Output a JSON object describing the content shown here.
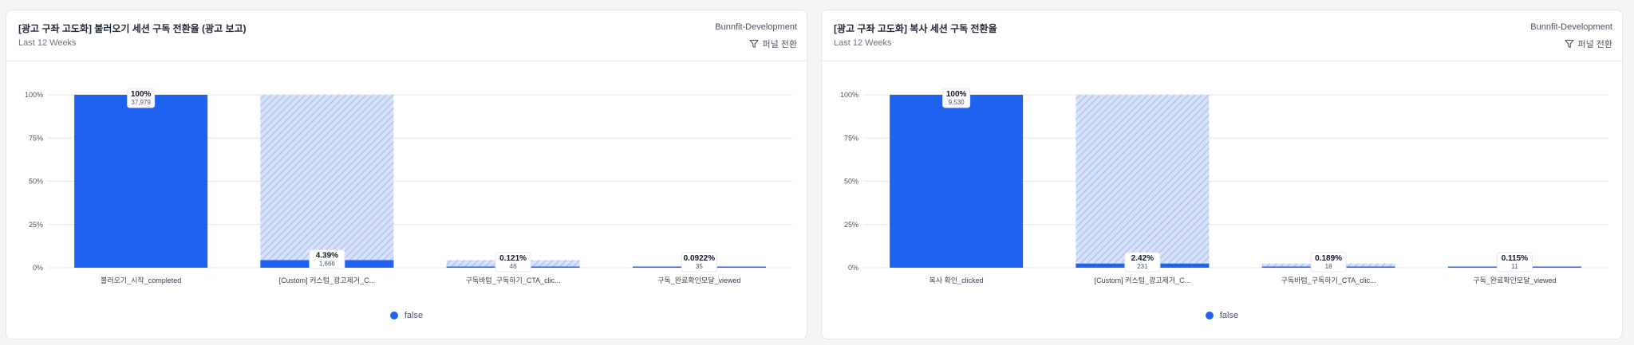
{
  "colors": {
    "bar": "#1e62f0",
    "hatch": "#a9c0f2",
    "hatch_bg": "#d8e3fb",
    "grid": "#e5e7eb"
  },
  "cards": [
    {
      "title": "[광고 구좌 고도화] 불러오기 세션 구독 전환율 (광고 보고)",
      "subtitle": "Last 12 Weeks",
      "project": "Bunnfit-Development",
      "action_label": "퍼널 전환",
      "action_icon": "funnel-icon",
      "legend_label": "false",
      "chart_data": {
        "type": "bar",
        "categories": [
          "불러오기_시작_completed",
          "[Custom] 커스텀_광고제거_C...",
          "구독바텀_구독하기_CTA_clic...",
          "구독_완료확인모달_viewed"
        ],
        "series": [
          {
            "name": "false",
            "values": [
              100,
              4.39,
              0.121,
              0.0922
            ]
          }
        ],
        "bar_labels": [
          "100%",
          "4.39%",
          "0.121%",
          "0.0922%"
        ],
        "counts": [
          "37,979",
          "1,666",
          "46",
          "35"
        ],
        "dropoff_ceiling": [
          null,
          100,
          4.39,
          0.121
        ],
        "yticks": [
          "0%",
          "25%",
          "50%",
          "75%",
          "100%"
        ],
        "ylim": [
          0,
          100
        ],
        "grid": true,
        "legend_position": "bottom-center"
      }
    },
    {
      "title": "[광고 구좌 고도화] 복사 세션 구독 전환율",
      "subtitle": "Last 12 Weeks",
      "project": "Bunnfit-Development",
      "action_label": "퍼널 전환",
      "action_icon": "funnel-icon",
      "legend_label": "false",
      "chart_data": {
        "type": "bar",
        "categories": [
          "복사 확인_clicked",
          "[Custom] 커스텀_광고제거_C...",
          "구독바텀_구독하기_CTA_clic...",
          "구독_완료확인모달_viewed"
        ],
        "series": [
          {
            "name": "false",
            "values": [
              100,
              2.42,
              0.189,
              0.115
            ]
          }
        ],
        "bar_labels": [
          "100%",
          "2.42%",
          "0.189%",
          "0.115%"
        ],
        "counts": [
          "9,530",
          "231",
          "18",
          "11"
        ],
        "dropoff_ceiling": [
          null,
          100,
          2.42,
          0.189
        ],
        "yticks": [
          "0%",
          "25%",
          "50%",
          "75%",
          "100%"
        ],
        "ylim": [
          0,
          100
        ],
        "grid": true,
        "legend_position": "bottom-center"
      }
    }
  ]
}
